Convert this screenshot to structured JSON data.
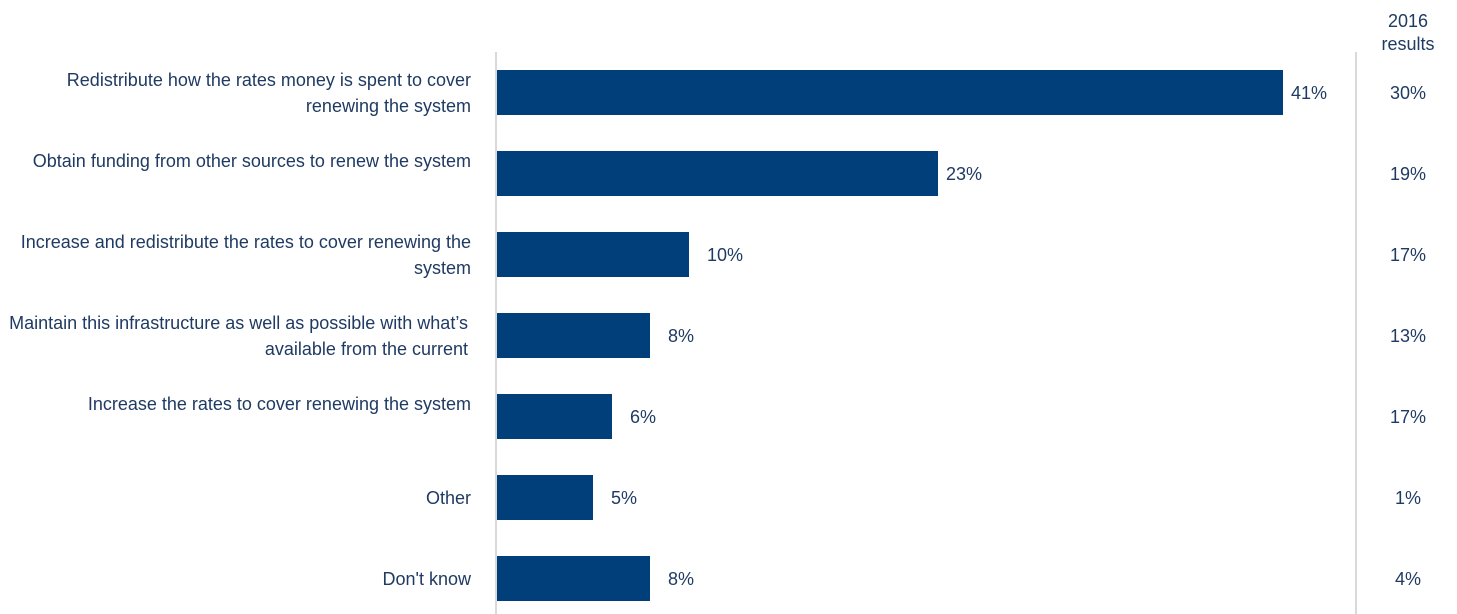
{
  "chart_data": {
    "type": "bar",
    "orientation": "horizontal",
    "categories": [
      "Redistribute how the rates money is spent to cover renewing the system",
      "Obtain funding from other sources to renew the system",
      "Increase and redistribute the rates to cover renewing the system",
      "Maintain this infrastructure as well as possible with what’s available from the current",
      "Increase the rates to cover renewing the system",
      "Other",
      "Don't know"
    ],
    "values": [
      41,
      23,
      10,
      8,
      6,
      5,
      8
    ],
    "value_labels": [
      "41%",
      "23%",
      "10%",
      "8%",
      "6%",
      "5%",
      "8%"
    ],
    "unit": "%",
    "comparison_column": {
      "header_line1": "2016",
      "header_line2": "results",
      "values": [
        "30%",
        "19%",
        "17%",
        "13%",
        "17%",
        "1%",
        "4%"
      ]
    },
    "bar_color": "#003f7a",
    "text_color": "#1f3a63",
    "axis_color": "#d9d9d9",
    "xlim": [
      0,
      41
    ],
    "grid": false,
    "legend": "none"
  }
}
